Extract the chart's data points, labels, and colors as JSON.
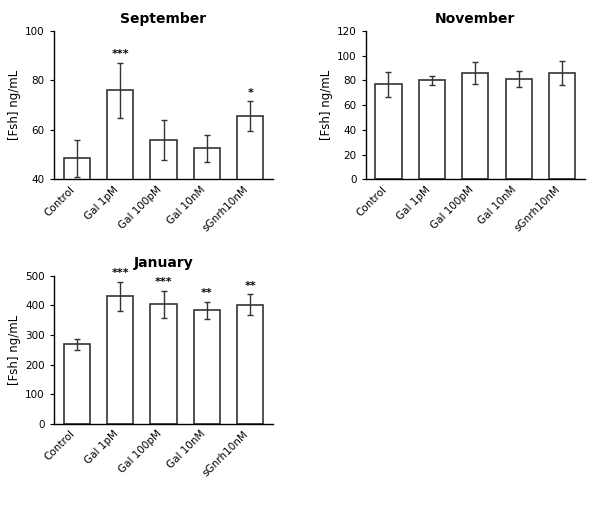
{
  "categories": [
    "Control",
    "Gal 1pM",
    "Gal 100pM",
    "Gal 10nM",
    "sGnrh10nM"
  ],
  "september": {
    "title": "September",
    "values": [
      48.5,
      76.0,
      56.0,
      52.5,
      65.5
    ],
    "errors": [
      7.5,
      11.0,
      8.0,
      5.5,
      6.0
    ],
    "ylim": [
      40,
      100
    ],
    "yticks": [
      40,
      60,
      80,
      100
    ],
    "ylabel": "[Fsh] ng/mL",
    "sig": [
      "",
      "***",
      "",
      "",
      "*"
    ]
  },
  "november": {
    "title": "November",
    "values": [
      77.0,
      80.0,
      86.0,
      81.0,
      86.0
    ],
    "errors": [
      10.0,
      4.0,
      9.0,
      6.5,
      10.0
    ],
    "ylim": [
      0,
      120
    ],
    "yticks": [
      0,
      20,
      40,
      60,
      80,
      100,
      120
    ],
    "ylabel": "[Fsh] ng/mL",
    "sig": [
      "",
      "",
      "",
      "",
      ""
    ]
  },
  "january": {
    "title": "January",
    "values": [
      268.0,
      430.0,
      403.0,
      383.0,
      402.0
    ],
    "errors": [
      20.0,
      48.0,
      45.0,
      28.0,
      35.0
    ],
    "ylim": [
      0,
      500
    ],
    "yticks": [
      0,
      100,
      200,
      300,
      400,
      500
    ],
    "ylabel": "[Fsh] ng/mL",
    "sig": [
      "",
      "***",
      "***",
      "**",
      "**"
    ]
  },
  "bar_color": "#ffffff",
  "bar_edgecolor": "#333333",
  "bar_linewidth": 1.2,
  "bar_width": 0.6,
  "sig_fontsize": 8,
  "title_fontsize": 10,
  "tick_fontsize": 7.5,
  "ylabel_fontsize": 8.5,
  "background_color": "#ffffff"
}
